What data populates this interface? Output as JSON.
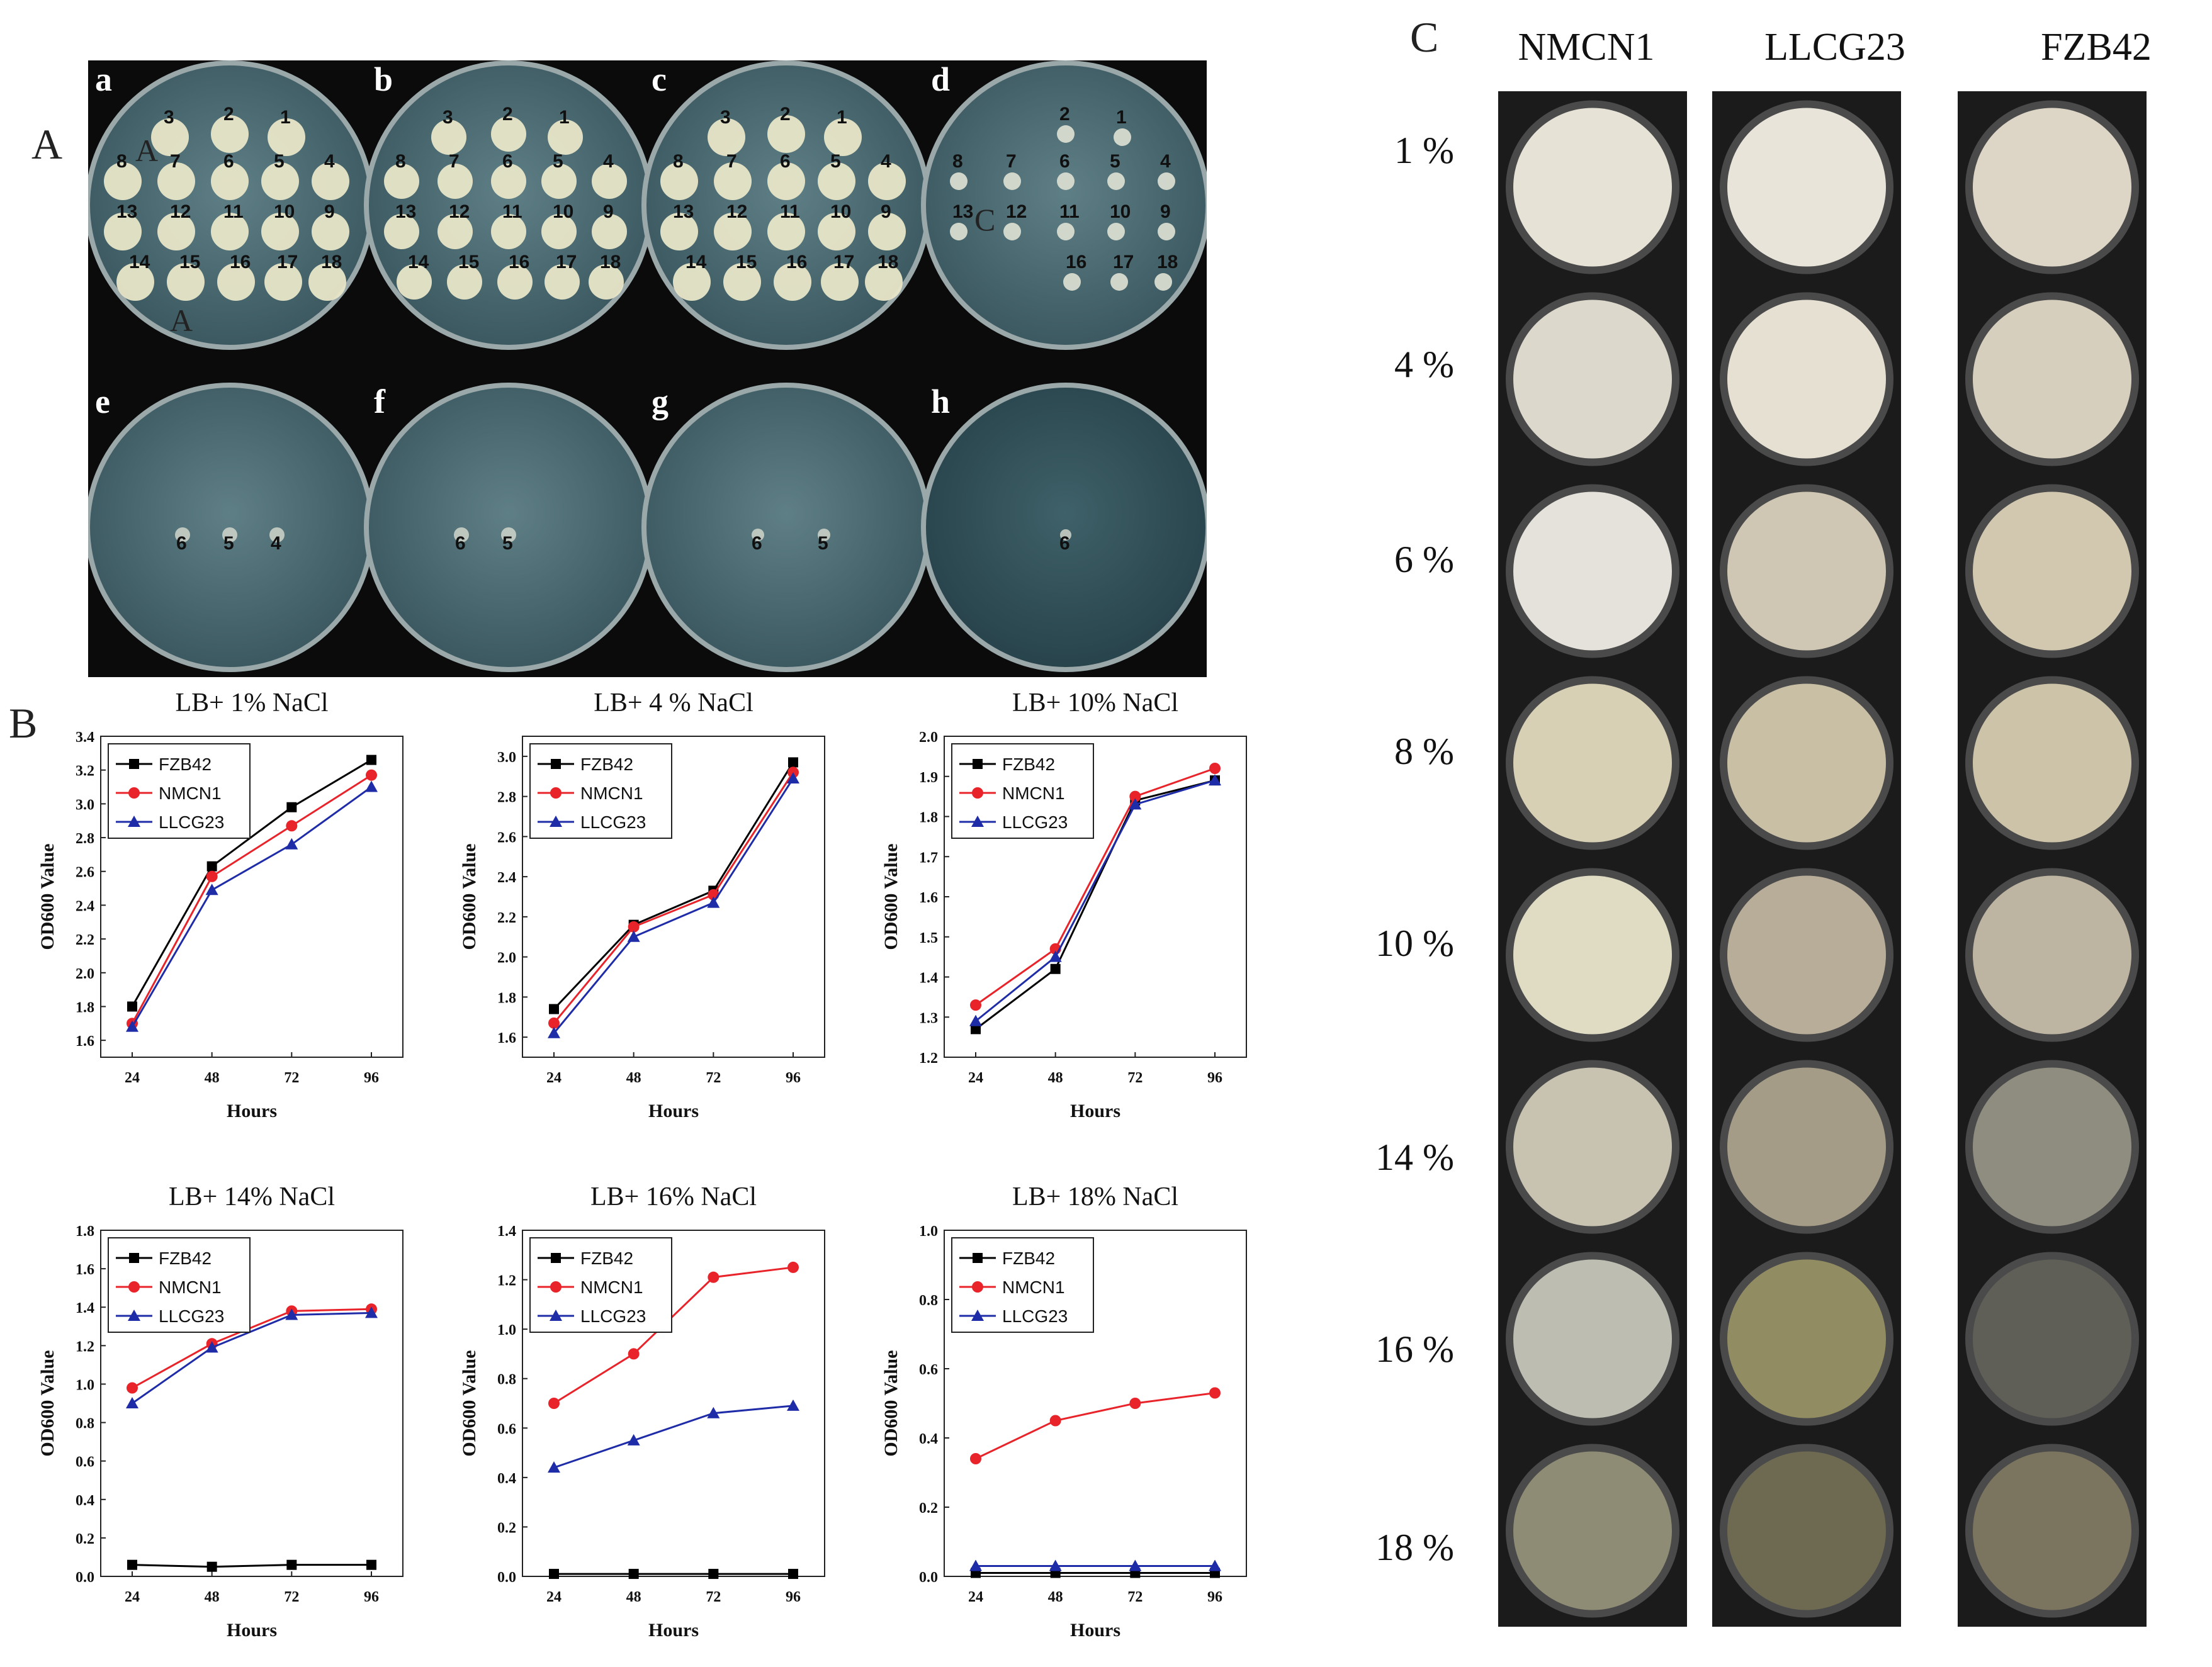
{
  "panel_labels": {
    "a": "A",
    "b": "B",
    "c": "C"
  },
  "plates_A": [
    {
      "letter": "a",
      "numbers": [
        "3",
        "2",
        "1",
        "8",
        "7",
        "6",
        "5",
        "4",
        "13",
        "12",
        "11",
        "10",
        "9",
        "14",
        "15",
        "16",
        "17",
        "18"
      ],
      "labels": [
        "A",
        "A",
        "A"
      ]
    },
    {
      "letter": "b",
      "numbers": [
        "3",
        "2",
        "1",
        "8",
        "7",
        "6",
        "5",
        "4",
        "13",
        "12",
        "11",
        "10",
        "9",
        "14",
        "15",
        "16",
        "17",
        "18"
      ]
    },
    {
      "letter": "c",
      "numbers": [
        "3",
        "2",
        "1",
        "8",
        "7",
        "6",
        "5",
        "4",
        "13",
        "12",
        "11",
        "10",
        "9",
        "14",
        "15",
        "16",
        "17",
        "18"
      ]
    },
    {
      "letter": "d",
      "numbers": [
        "2",
        "1",
        "8",
        "7",
        "6",
        "5",
        "4",
        "13",
        "12",
        "11",
        "10",
        "9",
        "16",
        "17",
        "18"
      ],
      "labels": [
        "C"
      ]
    },
    {
      "letter": "e",
      "numbers": [
        "6",
        "5",
        "4"
      ]
    },
    {
      "letter": "f",
      "numbers": [
        "6",
        "5"
      ]
    },
    {
      "letter": "g",
      "numbers": [
        "6",
        "5"
      ]
    },
    {
      "letter": "h",
      "numbers": [
        "6"
      ]
    }
  ],
  "chart_data": [
    {
      "type": "line",
      "title": "LB+ 1% NaCl",
      "xlabel": "Hours",
      "ylabel": "OD600 Value",
      "x": [
        24,
        48,
        72,
        96
      ],
      "ylim": [
        1.5,
        3.4
      ],
      "yticks": [
        "1.6",
        "1.8",
        "2.0",
        "2.2",
        "2.4",
        "2.6",
        "2.8",
        "3.0",
        "3.2",
        "3.4"
      ],
      "legend_position": "top-left",
      "series": [
        {
          "name": "FZB42",
          "values": [
            1.8,
            2.63,
            2.98,
            3.26
          ],
          "color": "#000000",
          "marker": "square"
        },
        {
          "name": "NMCN1",
          "values": [
            1.7,
            2.57,
            2.87,
            3.17
          ],
          "color": "#e8232a",
          "marker": "circle"
        },
        {
          "name": "LLCG23",
          "values": [
            1.68,
            2.49,
            2.76,
            3.1
          ],
          "color": "#1f2ca8",
          "marker": "triangle"
        }
      ]
    },
    {
      "type": "line",
      "title": "LB+ 4 % NaCl",
      "xlabel": "Hours",
      "ylabel": "OD600 Value",
      "x": [
        24,
        48,
        72,
        96
      ],
      "ylim": [
        1.5,
        3.1
      ],
      "yticks": [
        "1.6",
        "1.8",
        "2.0",
        "2.2",
        "2.4",
        "2.6",
        "2.8",
        "3.0"
      ],
      "legend_position": "top-left",
      "series": [
        {
          "name": "FZB42",
          "values": [
            1.74,
            2.16,
            2.33,
            2.97
          ],
          "color": "#000000",
          "marker": "square"
        },
        {
          "name": "NMCN1",
          "values": [
            1.67,
            2.15,
            2.31,
            2.92
          ],
          "color": "#e8232a",
          "marker": "circle"
        },
        {
          "name": "LLCG23",
          "values": [
            1.62,
            2.1,
            2.27,
            2.89
          ],
          "color": "#1f2ca8",
          "marker": "triangle"
        }
      ]
    },
    {
      "type": "line",
      "title": "LB+ 10% NaCl",
      "xlabel": "Hours",
      "ylabel": "OD600 Value",
      "x": [
        24,
        48,
        72,
        96
      ],
      "ylim": [
        1.2,
        2.0
      ],
      "yticks": [
        "1.2",
        "1.3",
        "1.4",
        "1.5",
        "1.6",
        "1.7",
        "1.8",
        "1.9",
        "2.0"
      ],
      "legend_position": "top-left",
      "series": [
        {
          "name": "FZB42",
          "values": [
            1.27,
            1.42,
            1.84,
            1.89
          ],
          "color": "#000000",
          "marker": "square"
        },
        {
          "name": "NMCN1",
          "values": [
            1.33,
            1.47,
            1.85,
            1.92
          ],
          "color": "#e8232a",
          "marker": "circle"
        },
        {
          "name": "LLCG23",
          "values": [
            1.29,
            1.45,
            1.83,
            1.89
          ],
          "color": "#1f2ca8",
          "marker": "triangle"
        }
      ]
    },
    {
      "type": "line",
      "title": "LB+ 14% NaCl",
      "xlabel": "Hours",
      "ylabel": "OD600 Value",
      "x": [
        24,
        48,
        72,
        96
      ],
      "ylim": [
        0.0,
        1.8
      ],
      "yticks": [
        "0.0",
        "0.2",
        "0.4",
        "0.6",
        "0.8",
        "1.0",
        "1.2",
        "1.4",
        "1.6",
        "1.8"
      ],
      "legend_position": "top-left",
      "series": [
        {
          "name": "FZB42",
          "values": [
            0.06,
            0.05,
            0.06,
            0.06
          ],
          "color": "#000000",
          "marker": "square"
        },
        {
          "name": "NMCN1",
          "values": [
            0.98,
            1.21,
            1.38,
            1.39
          ],
          "color": "#e8232a",
          "marker": "circle"
        },
        {
          "name": "LLCG23",
          "values": [
            0.9,
            1.19,
            1.36,
            1.37
          ],
          "color": "#1f2ca8",
          "marker": "triangle"
        }
      ]
    },
    {
      "type": "line",
      "title": "LB+ 16% NaCl",
      "xlabel": "Hours",
      "ylabel": "OD600 Value",
      "x": [
        24,
        48,
        72,
        96
      ],
      "ylim": [
        0.0,
        1.4
      ],
      "yticks": [
        "0.0",
        "0.2",
        "0.4",
        "0.6",
        "0.8",
        "1.0",
        "1.2",
        "1.4"
      ],
      "legend_position": "top-left",
      "series": [
        {
          "name": "FZB42",
          "values": [
            0.01,
            0.01,
            0.01,
            0.01
          ],
          "color": "#000000",
          "marker": "square"
        },
        {
          "name": "NMCN1",
          "values": [
            0.7,
            0.9,
            1.21,
            1.25
          ],
          "color": "#e8232a",
          "marker": "circle"
        },
        {
          "name": "LLCG23",
          "values": [
            0.44,
            0.55,
            0.66,
            0.69
          ],
          "color": "#1f2ca8",
          "marker": "triangle"
        }
      ]
    },
    {
      "type": "line",
      "title": "LB+ 18% NaCl",
      "xlabel": "Hours",
      "ylabel": "OD600 Value",
      "x": [
        24,
        48,
        72,
        96
      ],
      "ylim": [
        0.0,
        1.0
      ],
      "yticks": [
        "0.0",
        "0.2",
        "0.4",
        "0.6",
        "0.8",
        "1.0"
      ],
      "legend_position": "top-left",
      "series": [
        {
          "name": "FZB42",
          "values": [
            0.01,
            0.01,
            0.01,
            0.01
          ],
          "color": "#000000",
          "marker": "square"
        },
        {
          "name": "NMCN1",
          "values": [
            0.34,
            0.45,
            0.5,
            0.53
          ],
          "color": "#e8232a",
          "marker": "circle"
        },
        {
          "name": "LLCG23",
          "values": [
            0.03,
            0.03,
            0.03,
            0.03
          ],
          "color": "#1f2ca8",
          "marker": "triangle"
        }
      ]
    }
  ],
  "panel_C": {
    "columns": [
      "NMCN1",
      "LLCG23",
      "FZB42"
    ],
    "rows": [
      "1 %",
      "4 %",
      "6 %",
      "8 %",
      "10 %",
      "14 %",
      "16 %",
      "18 %"
    ]
  }
}
